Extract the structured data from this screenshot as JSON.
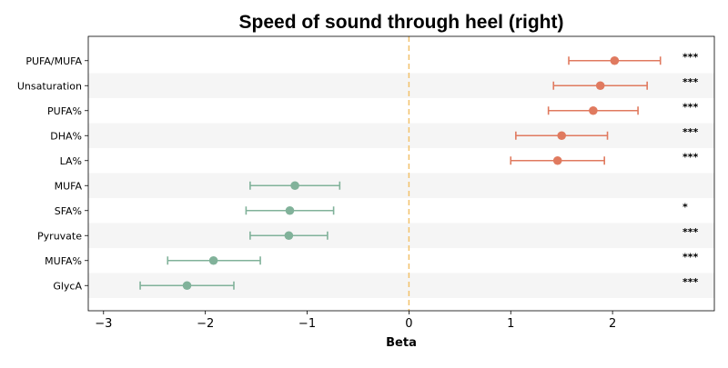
{
  "chart_data": {
    "type": "forest",
    "title": "Speed of sound through heel (right)",
    "xlabel": "Beta",
    "ylabel": "",
    "xlim": [
      -3.15,
      3.0
    ],
    "xticks": [
      -3,
      -2,
      -1,
      0,
      1,
      2
    ],
    "xtick_labels": [
      "−3",
      "−2",
      "−1",
      "0",
      "1",
      "2"
    ],
    "reference_line": 0,
    "grid": false,
    "row_banding": true,
    "colors": {
      "positive": "#e07a5f",
      "negative": "#81b29a",
      "reference_line": "#f2c26b",
      "band": "#f5f5f5"
    },
    "rows": [
      {
        "label": "PUFA/MUFA",
        "beta": 2.02,
        "ci": [
          1.57,
          2.47
        ],
        "sig": "***"
      },
      {
        "label": "Unsaturation",
        "beta": 1.88,
        "ci": [
          1.42,
          2.34
        ],
        "sig": "***"
      },
      {
        "label": "PUFA%",
        "beta": 1.81,
        "ci": [
          1.37,
          2.25
        ],
        "sig": "***"
      },
      {
        "label": "DHA%",
        "beta": 1.5,
        "ci": [
          1.05,
          1.95
        ],
        "sig": "***"
      },
      {
        "label": "LA%",
        "beta": 1.46,
        "ci": [
          1.0,
          1.92
        ],
        "sig": "***"
      },
      {
        "label": "MUFA",
        "beta": -1.12,
        "ci": [
          -1.56,
          -0.68
        ],
        "sig": ""
      },
      {
        "label": "SFA%",
        "beta": -1.17,
        "ci": [
          -1.6,
          -0.74
        ],
        "sig": "*"
      },
      {
        "label": "Pyruvate",
        "beta": -1.18,
        "ci": [
          -1.56,
          -0.8
        ],
        "sig": "***"
      },
      {
        "label": "MUFA%",
        "beta": -1.92,
        "ci": [
          -2.37,
          -1.46
        ],
        "sig": "***"
      },
      {
        "label": "GlycA",
        "beta": -2.18,
        "ci": [
          -2.64,
          -1.72
        ],
        "sig": "***"
      }
    ]
  }
}
